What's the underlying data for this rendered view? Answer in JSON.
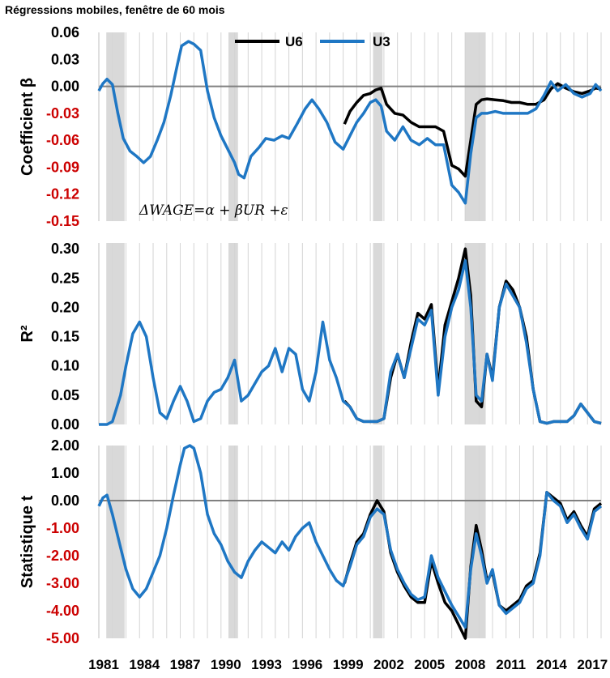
{
  "title": "Régressions mobiles, fenêtre de 60 mois",
  "chart_data": {
    "type": "line",
    "x_axis": {
      "range": [
        1981.0,
        2018.0
      ],
      "tick_values": [
        1981,
        1984,
        1987,
        1990,
        1993,
        1996,
        1999,
        2002,
        2005,
        2008,
        2011,
        2014,
        2017
      ],
      "tick_labels": [
        "1981",
        "1984",
        "1987",
        "1990",
        "1993",
        "1996",
        "1999",
        "2002",
        "2005",
        "2008",
        "2011",
        "2014",
        "2017"
      ]
    },
    "recessions": [
      [
        1981.55,
        1982.9
      ],
      [
        1990.55,
        1991.25
      ],
      [
        2001.2,
        2001.9
      ],
      [
        2007.95,
        2009.5
      ]
    ],
    "legend": [
      {
        "name": "U6",
        "color": "#000000"
      },
      {
        "name": "U3",
        "color": "#1f77c4"
      }
    ],
    "equation": "ΔWAGE=α + βUR +ε",
    "panels": [
      {
        "id": "beta",
        "ylabel": "Coefficient β",
        "ylim": [
          -0.15,
          0.06
        ],
        "ticks": [
          0.06,
          0.03,
          0.0,
          -0.03,
          -0.06,
          -0.09,
          -0.12,
          -0.15
        ],
        "tick_labels": [
          "0.06",
          "0.03",
          "0.00",
          "-0.03",
          "-0.06",
          "-0.09",
          "-0.12",
          "-0.15"
        ],
        "tick_colors": [
          "#000000",
          "#000000",
          "#000000",
          "#cc0000",
          "#cc0000",
          "#cc0000",
          "#cc0000",
          "#cc0000"
        ],
        "zero_line": 0.0,
        "series": [
          {
            "name": "U3",
            "x": [
              1981.0,
              1981.3,
              1981.6,
              1982.0,
              1982.4,
              1982.8,
              1983.3,
              1983.8,
              1984.3,
              1984.8,
              1985.3,
              1985.8,
              1986.3,
              1986.8,
              1987.1,
              1987.6,
              1988.0,
              1988.5,
              1989.0,
              1989.5,
              1990.0,
              1990.5,
              1991.0,
              1991.3,
              1991.7,
              1992.2,
              1992.8,
              1993.3,
              1993.9,
              1994.5,
              1995.0,
              1995.6,
              1996.2,
              1996.7,
              1997.2,
              1997.8,
              1998.4,
              1999.0,
              1999.5,
              2000.0,
              2000.5,
              2001.0,
              2001.4,
              2001.8,
              2002.2,
              2002.8,
              2003.4,
              2004.0,
              2004.6,
              2005.2,
              2005.8,
              2006.4,
              2007.0,
              2007.5,
              2008.0,
              2008.4,
              2008.8,
              2009.2,
              2009.6,
              2010.2,
              2010.8,
              2011.4,
              2012.0,
              2012.6,
              2013.2,
              2013.8,
              2014.3,
              2014.8,
              2015.4,
              2016.0,
              2016.6,
              2017.2,
              2017.6,
              2018.0
            ],
            "values": [
              -0.005,
              0.003,
              0.008,
              0.002,
              -0.03,
              -0.058,
              -0.072,
              -0.078,
              -0.085,
              -0.078,
              -0.06,
              -0.04,
              -0.01,
              0.025,
              0.045,
              0.05,
              0.047,
              0.04,
              -0.005,
              -0.035,
              -0.055,
              -0.07,
              -0.085,
              -0.098,
              -0.102,
              -0.078,
              -0.068,
              -0.058,
              -0.06,
              -0.055,
              -0.058,
              -0.042,
              -0.025,
              -0.015,
              -0.025,
              -0.04,
              -0.062,
              -0.07,
              -0.055,
              -0.04,
              -0.03,
              -0.018,
              -0.015,
              -0.022,
              -0.05,
              -0.06,
              -0.045,
              -0.06,
              -0.065,
              -0.058,
              -0.065,
              -0.065,
              -0.11,
              -0.118,
              -0.13,
              -0.075,
              -0.035,
              -0.03,
              -0.03,
              -0.028,
              -0.03,
              -0.03,
              -0.03,
              -0.03,
              -0.025,
              -0.01,
              0.005,
              -0.005,
              0.002,
              -0.008,
              -0.012,
              -0.008,
              0.002,
              -0.005
            ]
          },
          {
            "name": "U6",
            "x": [
              1999.1,
              1999.5,
              2000.0,
              2000.5,
              2001.0,
              2001.4,
              2001.8,
              2002.2,
              2002.8,
              2003.4,
              2004.0,
              2004.6,
              2005.2,
              2005.8,
              2006.4,
              2007.0,
              2007.5,
              2008.0,
              2008.4,
              2008.8,
              2009.2,
              2009.6,
              2010.2,
              2010.8,
              2011.4,
              2012.0,
              2012.6,
              2013.2,
              2013.8,
              2014.3,
              2014.8,
              2015.4,
              2016.0,
              2016.6,
              2017.2,
              2017.6,
              2018.0
            ],
            "values": [
              -0.042,
              -0.028,
              -0.018,
              -0.01,
              -0.008,
              -0.004,
              -0.002,
              -0.02,
              -0.03,
              -0.032,
              -0.04,
              -0.045,
              -0.045,
              -0.045,
              -0.05,
              -0.088,
              -0.092,
              -0.1,
              -0.06,
              -0.02,
              -0.015,
              -0.014,
              -0.015,
              -0.016,
              -0.018,
              -0.018,
              -0.02,
              -0.02,
              -0.015,
              -0.003,
              0.003,
              -0.002,
              -0.006,
              -0.008,
              -0.005,
              -0.002,
              -0.003
            ]
          }
        ]
      },
      {
        "id": "r2",
        "ylabel": "R²",
        "ylim": [
          0.0,
          0.31
        ],
        "ticks": [
          0.3,
          0.25,
          0.2,
          0.15,
          0.1,
          0.05,
          0.0
        ],
        "tick_labels": [
          "0.30",
          "0.25",
          "0.20",
          "0.15",
          "0.10",
          "0.05",
          "0.00"
        ],
        "tick_colors": [
          "#000000",
          "#000000",
          "#000000",
          "#000000",
          "#000000",
          "#000000",
          "#000000"
        ],
        "zero_line": null,
        "series": [
          {
            "name": "U3",
            "x": [
              1981.0,
              1981.6,
              1982.0,
              1982.6,
              1983.0,
              1983.5,
              1984.0,
              1984.5,
              1985.0,
              1985.5,
              1986.0,
              1986.5,
              1987.0,
              1987.5,
              1988.0,
              1988.5,
              1989.0,
              1989.5,
              1990.0,
              1990.5,
              1991.0,
              1991.5,
              1992.0,
              1992.5,
              1993.0,
              1993.5,
              1994.0,
              1994.5,
              1995.0,
              1995.5,
              1996.0,
              1996.5,
              1997.0,
              1997.5,
              1998.0,
              1998.5,
              1999.0,
              1999.5,
              2000.0,
              2000.5,
              2001.0,
              2001.5,
              2002.0,
              2002.5,
              2003.0,
              2003.5,
              2004.0,
              2004.5,
              2005.0,
              2005.5,
              2006.0,
              2006.5,
              2007.0,
              2007.5,
              2008.0,
              2008.4,
              2008.8,
              2009.2,
              2009.6,
              2010.0,
              2010.5,
              2011.0,
              2011.5,
              2012.0,
              2012.5,
              2013.0,
              2013.5,
              2014.0,
              2014.5,
              2015.0,
              2015.5,
              2016.0,
              2016.5,
              2017.0,
              2017.5,
              2018.0
            ],
            "values": [
              0.0,
              0.0,
              0.005,
              0.05,
              0.1,
              0.155,
              0.175,
              0.15,
              0.08,
              0.02,
              0.01,
              0.04,
              0.065,
              0.04,
              0.005,
              0.01,
              0.04,
              0.055,
              0.06,
              0.08,
              0.11,
              0.04,
              0.05,
              0.07,
              0.09,
              0.1,
              0.13,
              0.09,
              0.13,
              0.12,
              0.06,
              0.04,
              0.09,
              0.175,
              0.11,
              0.08,
              0.04,
              0.03,
              0.01,
              0.005,
              0.005,
              0.005,
              0.01,
              0.09,
              0.12,
              0.08,
              0.13,
              0.18,
              0.17,
              0.195,
              0.05,
              0.15,
              0.2,
              0.23,
              0.28,
              0.2,
              0.05,
              0.04,
              0.12,
              0.075,
              0.2,
              0.24,
              0.22,
              0.2,
              0.14,
              0.06,
              0.005,
              0.002,
              0.005,
              0.005,
              0.005,
              0.015,
              0.035,
              0.02,
              0.005,
              0.002
            ]
          },
          {
            "name": "U6",
            "x": [
              1999.1,
              1999.5,
              2000.0,
              2000.5,
              2001.0,
              2001.5,
              2002.0,
              2002.5,
              2003.0,
              2003.5,
              2004.0,
              2004.5,
              2005.0,
              2005.5,
              2006.0,
              2006.5,
              2007.0,
              2007.5,
              2008.0,
              2008.4,
              2008.8,
              2009.2,
              2009.6,
              2010.0,
              2010.5,
              2011.0,
              2011.5,
              2012.0,
              2012.5,
              2013.0,
              2013.5,
              2014.0,
              2014.5,
              2015.0,
              2015.5,
              2016.0,
              2016.5,
              2017.0,
              2017.5,
              2018.0
            ],
            "values": [
              0.04,
              0.03,
              0.01,
              0.005,
              0.005,
              0.005,
              0.01,
              0.08,
              0.12,
              0.08,
              0.14,
              0.19,
              0.18,
              0.205,
              0.06,
              0.17,
              0.21,
              0.25,
              0.3,
              0.22,
              0.04,
              0.03,
              0.12,
              0.08,
              0.2,
              0.245,
              0.23,
              0.2,
              0.15,
              0.06,
              0.005,
              0.002,
              0.005,
              0.005,
              0.005,
              0.015,
              0.035,
              0.02,
              0.005,
              0.002
            ]
          }
        ]
      },
      {
        "id": "tstat",
        "ylabel": "Statistique t",
        "ylim": [
          -5.0,
          2.0
        ],
        "ticks": [
          2.0,
          1.0,
          0.0,
          -1.0,
          -2.0,
          -3.0,
          -4.0,
          -5.0
        ],
        "tick_labels": [
          "2.00",
          "1.00",
          "0.00",
          "-1.00",
          "-2.00",
          "-3.00",
          "-4.00",
          "-5.00"
        ],
        "tick_colors": [
          "#000000",
          "#000000",
          "#000000",
          "#cc0000",
          "#cc0000",
          "#cc0000",
          "#cc0000",
          "#cc0000"
        ],
        "zero_line": 0.0,
        "series": [
          {
            "name": "U3",
            "x": [
              1981.0,
              1981.3,
              1981.6,
              1982.0,
              1982.5,
              1983.0,
              1983.5,
              1984.0,
              1984.5,
              1985.0,
              1985.5,
              1986.0,
              1986.5,
              1987.0,
              1987.3,
              1987.7,
              1988.0,
              1988.5,
              1989.0,
              1989.5,
              1990.0,
              1990.5,
              1991.0,
              1991.5,
              1992.0,
              1992.5,
              1993.0,
              1993.5,
              1994.0,
              1994.5,
              1995.0,
              1995.5,
              1996.0,
              1996.5,
              1997.0,
              1997.5,
              1998.0,
              1998.5,
              1999.0,
              1999.5,
              2000.0,
              2000.5,
              2001.0,
              2001.5,
              2002.0,
              2002.5,
              2003.0,
              2003.5,
              2004.0,
              2004.5,
              2005.0,
              2005.5,
              2006.0,
              2006.5,
              2007.0,
              2007.5,
              2008.0,
              2008.4,
              2008.8,
              2009.2,
              2009.6,
              2010.0,
              2010.5,
              2011.0,
              2011.5,
              2012.0,
              2012.5,
              2013.0,
              2013.5,
              2014.0,
              2014.5,
              2015.0,
              2015.5,
              2016.0,
              2016.5,
              2017.0,
              2017.5,
              2018.0
            ],
            "values": [
              -0.2,
              0.1,
              0.2,
              -0.5,
              -1.5,
              -2.5,
              -3.2,
              -3.5,
              -3.2,
              -2.6,
              -2.0,
              -1.0,
              0.2,
              1.3,
              1.9,
              2.0,
              1.9,
              1.0,
              -0.5,
              -1.2,
              -1.6,
              -2.2,
              -2.6,
              -2.8,
              -2.2,
              -1.8,
              -1.5,
              -1.7,
              -1.9,
              -1.5,
              -1.8,
              -1.3,
              -1.0,
              -0.8,
              -1.5,
              -2.0,
              -2.5,
              -2.9,
              -3.1,
              -2.4,
              -1.6,
              -1.3,
              -0.6,
              -0.3,
              -0.5,
              -1.8,
              -2.5,
              -3.0,
              -3.4,
              -3.6,
              -3.5,
              -2.0,
              -2.8,
              -3.3,
              -3.8,
              -4.2,
              -4.6,
              -2.5,
              -1.2,
              -2.0,
              -3.0,
              -2.5,
              -3.8,
              -4.1,
              -3.9,
              -3.7,
              -3.2,
              -3.0,
              -2.0,
              0.3,
              0.0,
              -0.2,
              -0.8,
              -0.5,
              -1.0,
              -1.4,
              -0.4,
              -0.2
            ]
          },
          {
            "name": "U6",
            "x": [
              1999.1,
              1999.5,
              2000.0,
              2000.5,
              2001.0,
              2001.5,
              2002.0,
              2002.5,
              2003.0,
              2003.5,
              2004.0,
              2004.5,
              2005.0,
              2005.5,
              2006.0,
              2006.5,
              2007.0,
              2007.5,
              2008.0,
              2008.4,
              2008.8,
              2009.2,
              2009.6,
              2010.0,
              2010.5,
              2011.0,
              2011.5,
              2012.0,
              2012.5,
              2013.0,
              2013.5,
              2014.0,
              2014.5,
              2015.0,
              2015.5,
              2016.0,
              2016.5,
              2017.0,
              2017.5,
              2018.0
            ],
            "values": [
              -3.0,
              -2.3,
              -1.5,
              -1.2,
              -0.5,
              0.0,
              -0.4,
              -1.9,
              -2.6,
              -3.1,
              -3.5,
              -3.7,
              -3.7,
              -2.2,
              -3.0,
              -3.7,
              -4.0,
              -4.5,
              -5.0,
              -2.4,
              -0.9,
              -1.8,
              -2.9,
              -2.6,
              -3.8,
              -4.0,
              -3.8,
              -3.6,
              -3.1,
              -2.9,
              -1.9,
              0.3,
              0.1,
              -0.1,
              -0.7,
              -0.4,
              -0.9,
              -1.3,
              -0.3,
              -0.1
            ]
          }
        ]
      }
    ]
  }
}
